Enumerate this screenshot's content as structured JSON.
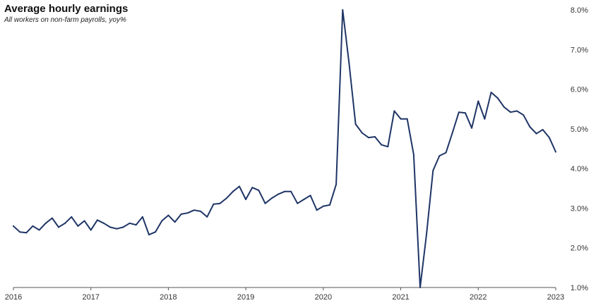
{
  "chart_data": {
    "type": "line",
    "title": "Average hourly earnings",
    "subtitle": "All workers on non-farm payrolls, yoy%",
    "xlabel": "",
    "ylabel": "",
    "ylim": [
      1.0,
      8.0
    ],
    "xlim": [
      "2016-01",
      "2023-01"
    ],
    "y_ticks": [
      1.0,
      2.0,
      3.0,
      4.0,
      5.0,
      6.0,
      7.0,
      8.0
    ],
    "y_tick_labels": [
      "1.0%",
      "2.0%",
      "3.0%",
      "4.0%",
      "5.0%",
      "6.0%",
      "7.0%",
      "8.0%"
    ],
    "x_ticks": [
      "2016-01",
      "2017-01",
      "2018-01",
      "2019-01",
      "2020-01",
      "2021-01",
      "2022-01",
      "2023-01"
    ],
    "x_tick_labels": [
      "2016",
      "2017",
      "2018",
      "2019",
      "2020",
      "2021",
      "2022",
      "2023"
    ],
    "y_axis_position": "right",
    "grid": false,
    "line_color": "#1f3566",
    "series": [
      {
        "values": [
          [
            "2016-01",
            2.55
          ],
          [
            "2016-02",
            2.4
          ],
          [
            "2016-03",
            2.38
          ],
          [
            "2016-04",
            2.55
          ],
          [
            "2016-05",
            2.45
          ],
          [
            "2016-06",
            2.62
          ],
          [
            "2016-07",
            2.75
          ],
          [
            "2016-08",
            2.52
          ],
          [
            "2016-09",
            2.62
          ],
          [
            "2016-10",
            2.78
          ],
          [
            "2016-11",
            2.55
          ],
          [
            "2016-12",
            2.68
          ],
          [
            "2017-01",
            2.45
          ],
          [
            "2017-02",
            2.7
          ],
          [
            "2017-03",
            2.62
          ],
          [
            "2017-04",
            2.52
          ],
          [
            "2017-05",
            2.48
          ],
          [
            "2017-06",
            2.52
          ],
          [
            "2017-07",
            2.62
          ],
          [
            "2017-08",
            2.58
          ],
          [
            "2017-09",
            2.78
          ],
          [
            "2017-10",
            2.33
          ],
          [
            "2017-11",
            2.4
          ],
          [
            "2017-12",
            2.68
          ],
          [
            "2018-01",
            2.82
          ],
          [
            "2018-02",
            2.65
          ],
          [
            "2018-03",
            2.85
          ],
          [
            "2018-04",
            2.88
          ],
          [
            "2018-05",
            2.95
          ],
          [
            "2018-06",
            2.92
          ],
          [
            "2018-07",
            2.78
          ],
          [
            "2018-08",
            3.1
          ],
          [
            "2018-09",
            3.12
          ],
          [
            "2018-10",
            3.25
          ],
          [
            "2018-11",
            3.42
          ],
          [
            "2018-12",
            3.55
          ],
          [
            "2019-01",
            3.22
          ],
          [
            "2019-02",
            3.52
          ],
          [
            "2019-03",
            3.45
          ],
          [
            "2019-04",
            3.12
          ],
          [
            "2019-05",
            3.25
          ],
          [
            "2019-06",
            3.35
          ],
          [
            "2019-07",
            3.42
          ],
          [
            "2019-08",
            3.42
          ],
          [
            "2019-09",
            3.12
          ],
          [
            "2019-10",
            3.22
          ],
          [
            "2019-11",
            3.32
          ],
          [
            "2019-12",
            2.95
          ],
          [
            "2020-01",
            3.05
          ],
          [
            "2020-02",
            3.08
          ],
          [
            "2020-03",
            3.6
          ],
          [
            "2020-04",
            8.0
          ],
          [
            "2020-05",
            6.65
          ],
          [
            "2020-06",
            5.12
          ],
          [
            "2020-07",
            4.9
          ],
          [
            "2020-08",
            4.78
          ],
          [
            "2020-09",
            4.8
          ],
          [
            "2020-10",
            4.6
          ],
          [
            "2020-11",
            4.55
          ],
          [
            "2020-12",
            5.45
          ],
          [
            "2021-01",
            5.25
          ],
          [
            "2021-02",
            5.25
          ],
          [
            "2021-03",
            4.35
          ],
          [
            "2021-04",
            1.0
          ],
          [
            "2021-05",
            2.35
          ],
          [
            "2021-06",
            3.95
          ],
          [
            "2021-07",
            4.32
          ],
          [
            "2021-08",
            4.4
          ],
          [
            "2021-09",
            4.9
          ],
          [
            "2021-10",
            5.42
          ],
          [
            "2021-11",
            5.4
          ],
          [
            "2021-12",
            5.02
          ],
          [
            "2022-01",
            5.7
          ],
          [
            "2022-02",
            5.25
          ],
          [
            "2022-03",
            5.92
          ],
          [
            "2022-04",
            5.78
          ],
          [
            "2022-05",
            5.55
          ],
          [
            "2022-06",
            5.42
          ],
          [
            "2022-07",
            5.45
          ],
          [
            "2022-08",
            5.35
          ],
          [
            "2022-09",
            5.05
          ],
          [
            "2022-10",
            4.88
          ],
          [
            "2022-11",
            4.98
          ],
          [
            "2022-12",
            4.78
          ],
          [
            "2023-01",
            4.42
          ]
        ]
      }
    ]
  }
}
